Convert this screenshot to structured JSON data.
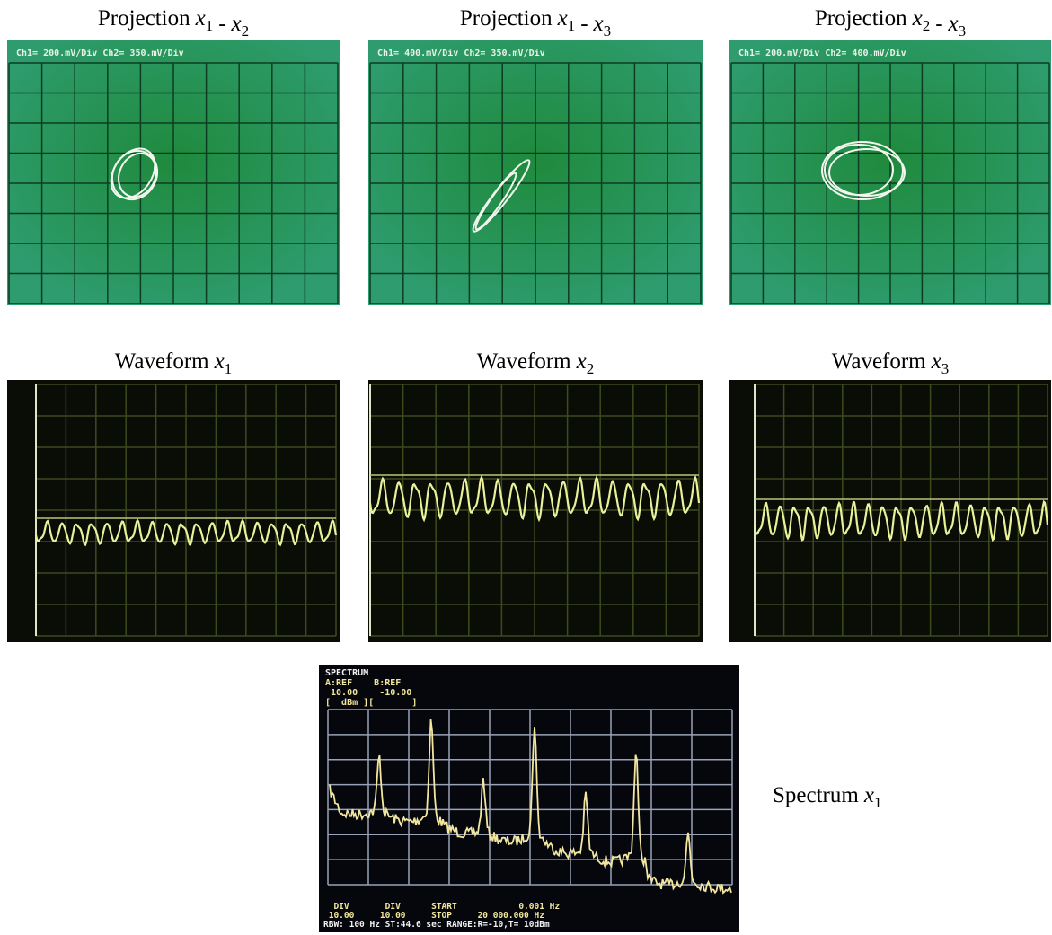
{
  "projections": [
    {
      "caption": {
        "label": "Projection",
        "a": {
          "var": "x",
          "sub": "1"
        },
        "sep": "-",
        "b": {
          "var": "x",
          "sub": "2"
        }
      },
      "scale": "Ch1= 200.mV/Div Ch2= 350.mV/Div"
    },
    {
      "caption": {
        "label": "Projection",
        "a": {
          "var": "x",
          "sub": "1"
        },
        "sep": "-",
        "b": {
          "var": "x",
          "sub": "3"
        }
      },
      "scale": "Ch1= 400.mV/Div Ch2= 350.mV/Div"
    },
    {
      "caption": {
        "label": "Projection",
        "a": {
          "var": "x",
          "sub": "2"
        },
        "sep": "-",
        "b": {
          "var": "x",
          "sub": "3"
        }
      },
      "scale": "Ch1= 200.mV/Div Ch2= 400.mV/Div"
    }
  ],
  "waveforms": [
    {
      "caption": {
        "label": "Waveform",
        "a": {
          "var": "x",
          "sub": "1"
        }
      }
    },
    {
      "caption": {
        "label": "Waveform",
        "a": {
          "var": "x",
          "sub": "2"
        }
      }
    },
    {
      "caption": {
        "label": "Waveform",
        "a": {
          "var": "x",
          "sub": "3"
        }
      }
    }
  ],
  "spectrum": {
    "caption": {
      "label": "Spectrum",
      "a": {
        "var": "x",
        "sub": "1"
      }
    },
    "header": [
      "SPECTRUM",
      "A:REF    B:REF",
      " 10.00    -10.00",
      "[  dBm ][       ]"
    ],
    "footer": [
      "  DIV       DIV      START            0.001 Hz",
      " 10.00     10.00     STOP     20 000.000 Hz",
      "RBW: 100 Hz ST:44.6 sec RANGE:R=-10,T= 10dBm"
    ]
  }
}
